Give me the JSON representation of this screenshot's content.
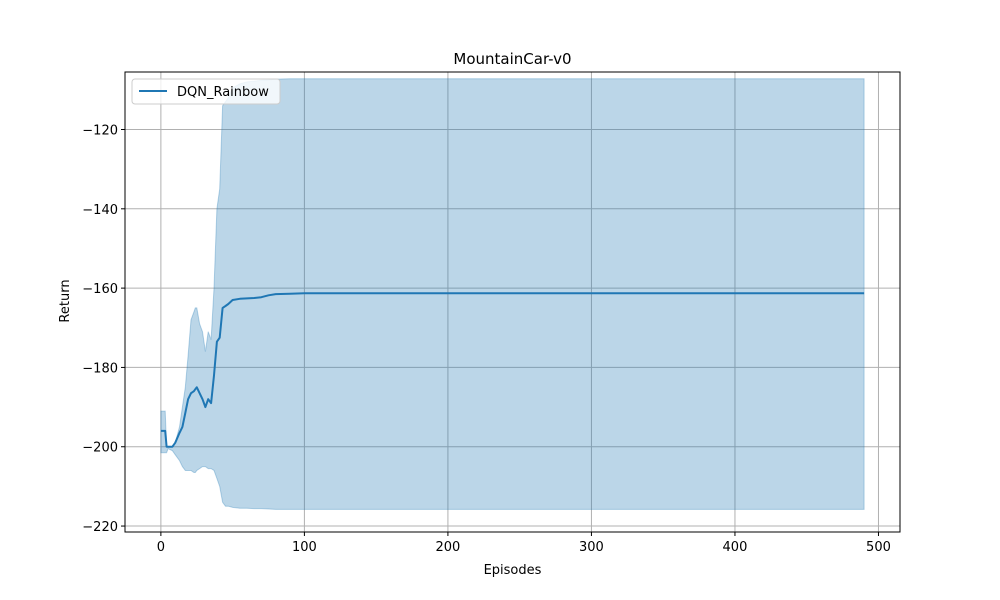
{
  "chart_data": {
    "type": "line",
    "title": "MountainCar-v0",
    "xlabel": "Episodes",
    "ylabel": "Return",
    "xlim": [
      -25,
      515
    ],
    "ylim": [
      -221.5,
      -105.5
    ],
    "xticks": [
      0,
      100,
      200,
      300,
      400,
      500
    ],
    "yticks": [
      -220,
      -200,
      -180,
      -160,
      -140,
      -120
    ],
    "grid": true,
    "legend": {
      "position": "top-left",
      "entries": [
        "DQN_Rainbow"
      ]
    },
    "series": [
      {
        "name": "DQN_Rainbow",
        "color": "#1f77b4",
        "band_color": "#1f77b4",
        "x": [
          0,
          3,
          4,
          5,
          8,
          10,
          13,
          15,
          17,
          19,
          21,
          23,
          24,
          25,
          27,
          29,
          31,
          33,
          35,
          37,
          39,
          41,
          43,
          45,
          47,
          50,
          55,
          60,
          65,
          70,
          75,
          80,
          90,
          100,
          150,
          200,
          250,
          300,
          350,
          400,
          450,
          490
        ],
        "mean": [
          -196.0,
          -196.0,
          -200.0,
          -200.0,
          -200.0,
          -199.0,
          -196.5,
          -195.0,
          -191.5,
          -188.0,
          -186.5,
          -186.0,
          -185.5,
          -185.0,
          -186.5,
          -188.0,
          -190.0,
          -188.0,
          -189.0,
          -182.0,
          -173.5,
          -172.5,
          -165.0,
          -164.5,
          -164.0,
          -163.0,
          -162.7,
          -162.6,
          -162.5,
          -162.3,
          -161.8,
          -161.5,
          -161.4,
          -161.3,
          -161.3,
          -161.3,
          -161.3,
          -161.3,
          -161.3,
          -161.3,
          -161.3,
          -161.3
        ],
        "upper": [
          -191.0,
          -191.0,
          -200.0,
          -200.0,
          -200.0,
          -199.0,
          -195.0,
          -190.0,
          -185.0,
          -177.0,
          -168.0,
          -166.0,
          -165.0,
          -165.0,
          -169.0,
          -171.0,
          -176.0,
          -171.0,
          -173.0,
          -160.0,
          -140.0,
          -135.0,
          -114.0,
          -113.0,
          -112.0,
          -109.5,
          -108.5,
          -108.0,
          -107.8,
          -107.6,
          -107.5,
          -107.3,
          -107.2,
          -107.2,
          -107.2,
          -107.2,
          -107.2,
          -107.2,
          -107.2,
          -107.2,
          -107.2,
          -107.2
        ],
        "lower": [
          -201.5,
          -201.5,
          -201.5,
          -200.5,
          -201.0,
          -202.0,
          -203.5,
          -205.0,
          -206.0,
          -206.0,
          -206.0,
          -206.5,
          -206.5,
          -206.0,
          -205.5,
          -205.0,
          -205.0,
          -205.5,
          -205.5,
          -206.0,
          -208.0,
          -210.0,
          -214.0,
          -215.0,
          -215.0,
          -215.3,
          -215.5,
          -215.5,
          -215.6,
          -215.6,
          -215.7,
          -215.8,
          -215.8,
          -215.8,
          -215.8,
          -215.8,
          -215.8,
          -215.8,
          -215.8,
          -215.8,
          -215.8,
          -215.8
        ]
      }
    ]
  }
}
